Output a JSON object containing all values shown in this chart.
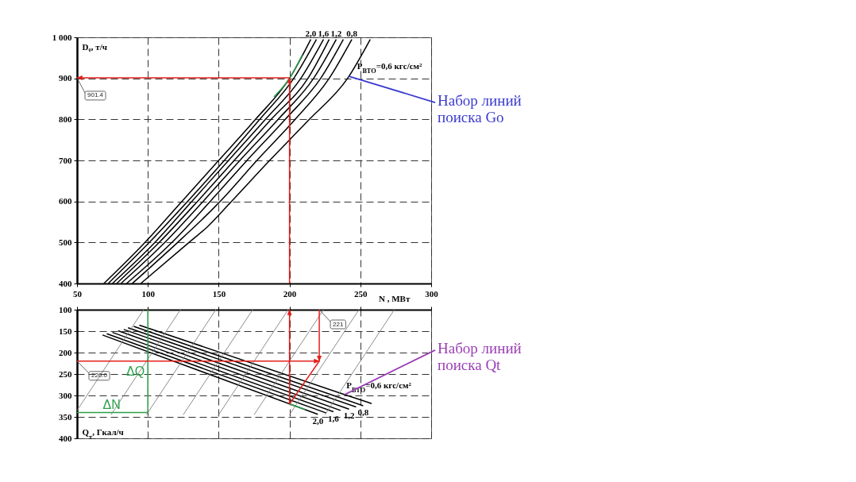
{
  "chart_data": [
    {
      "type": "line",
      "xlabel": "N , МВт",
      "ylabel": "D₀, т/ч",
      "xlim": [
        50,
        300
      ],
      "xticks": [
        50,
        100,
        150,
        200,
        250,
        300
      ],
      "ylim": [
        400,
        1000
      ],
      "yticks": [
        400,
        500,
        600,
        700,
        800,
        900,
        {
          "value": 1000,
          "label": "1 000"
        }
      ],
      "grid": true,
      "series": [
        {
          "name": "2,0",
          "color": "#000000",
          "x": [
            69,
            98,
            124,
            150,
            176,
            200,
            215
          ],
          "values": [
            400,
            500,
            600,
            700,
            800,
            900,
            995
          ]
        },
        {
          "color": "#000000",
          "x": [
            72,
            101,
            128,
            154,
            179,
            203,
            219
          ],
          "values": [
            400,
            500,
            600,
            700,
            800,
            900,
            995
          ]
        },
        {
          "name": "1,6",
          "color": "#000000",
          "x": [
            75,
            105,
            131,
            157,
            183,
            208,
            224
          ],
          "values": [
            400,
            500,
            600,
            700,
            800,
            900,
            995
          ]
        },
        {
          "color": "#000000",
          "x": [
            78,
            108,
            135,
            161,
            187,
            213,
            228
          ],
          "values": [
            400,
            500,
            600,
            700,
            800,
            900,
            995
          ]
        },
        {
          "name": "1,2",
          "color": "#000000",
          "x": [
            81,
            112,
            139,
            165,
            192,
            217,
            233
          ],
          "values": [
            400,
            500,
            600,
            700,
            800,
            900,
            995
          ]
        },
        {
          "color": "#000000",
          "x": [
            85,
            117,
            144,
            170,
            197,
            222,
            238
          ],
          "values": [
            400,
            500,
            600,
            700,
            800,
            900,
            995
          ]
        },
        {
          "name": "0,8",
          "color": "#000000",
          "x": [
            89,
            121,
            135,
            151,
            177,
            204,
            228,
            244
          ],
          "values": [
            400,
            500,
            545,
            600,
            700,
            800,
            900,
            995
          ]
        },
        {
          "name": "P$_{ВТО}$=0,6 кгс/см²",
          "color": "#000000",
          "x": [
            95,
            129,
            142,
            159,
            186,
            214,
            241,
            257
          ],
          "values": [
            400,
            500,
            538,
            600,
            700,
            800,
            900,
            995
          ]
        },
        {
          "color": "#2ca04a",
          "x": [
            189,
            200,
            209
          ],
          "values": [
            855,
            900,
            957
          ]
        },
        {
          "color": "#e3201b",
          "x": [
            200,
            200
          ],
          "values": [
            400,
            901.4
          ]
        },
        {
          "color": "#e3201b",
          "x": [
            200,
            50
          ],
          "values": [
            901.4,
            901.4
          ]
        }
      ],
      "annotations": [
        {
          "text": "901.4",
          "x": 50,
          "y": 901.4
        },
        {
          "text": "Набор линий\nпоиска Go",
          "x": 242,
          "y": 905
        }
      ]
    },
    {
      "type": "line",
      "ylabel": "Q$_{т}$, Гкал/ч",
      "xlim": [
        50,
        300
      ],
      "xticks": [
        50,
        100,
        150,
        200,
        250,
        300
      ],
      "tick_labels": "y",
      "ylim": [
        400,
        100
      ],
      "yticks": [
        100,
        150,
        200,
        250,
        300,
        350,
        400
      ],
      "grid": true,
      "series": [
        {
          "name": "2,0",
          "color": "#000000",
          "x": [
            68,
            220
          ],
          "values": [
            159,
            344
          ]
        },
        {
          "color": "#000000",
          "x": [
            71,
            226
          ],
          "values": [
            156,
            341
          ]
        },
        {
          "name": "1,6",
          "color": "#000000",
          "x": [
            75,
            231
          ],
          "values": [
            153,
            338
          ]
        },
        {
          "color": "#000000",
          "x": [
            79,
            236
          ],
          "values": [
            149,
            335
          ]
        },
        {
          "name": "1,2",
          "color": "#000000",
          "x": [
            83,
            242
          ],
          "values": [
            146,
            332
          ]
        },
        {
          "color": "#000000",
          "x": [
            86,
            247
          ],
          "values": [
            142,
            327
          ]
        },
        {
          "name": "0,8",
          "color": "#000000",
          "x": [
            90,
            252
          ],
          "values": [
            139,
            324
          ]
        },
        {
          "name": "P$_{ВТО}$=0,6 кгс/см²",
          "color": "#000000",
          "x": [
            94,
            239,
            258
          ],
          "values": [
            136,
            298,
            319
          ]
        },
        {
          "color": "#808080",
          "x": [
            50,
            97
          ],
          "values": [
            335,
            100
          ]
        },
        {
          "color": "#808080",
          "x": [
            74,
            123
          ],
          "values": [
            345,
            100
          ]
        },
        {
          "color": "#808080",
          "x": [
            99,
            148
          ],
          "values": [
            345,
            100
          ]
        },
        {
          "color": "#808080",
          "x": [
            125,
            174
          ],
          "values": [
            345,
            100
          ]
        },
        {
          "color": "#808080",
          "x": [
            150,
            199
          ],
          "values": [
            345,
            100
          ]
        },
        {
          "color": "#808080",
          "x": [
            175,
            224
          ],
          "values": [
            345,
            100
          ]
        },
        {
          "color": "#808080",
          "x": [
            200,
            249
          ],
          "values": [
            345,
            100
          ]
        },
        {
          "color": "#808080",
          "x": [
            225,
            274
          ],
          "values": [
            345,
            100
          ]
        },
        {
          "color": "#2ca04a",
          "x": [
            200,
            211
          ],
          "values": [
            320,
            333
          ]
        },
        {
          "color": "#2ca04a",
          "x": [
            50,
            100,
            100
          ],
          "values": [
            340,
            340,
            100
          ]
        },
        {
          "color": "#e3201b",
          "x": [
            200,
            200
          ],
          "values": [
            320,
            100
          ]
        },
        {
          "color": "#e3201b",
          "x": [
            200,
            221
          ],
          "values": [
            320,
            220
          ]
        },
        {
          "color": "#e3201b",
          "x": [
            50,
            221
          ],
          "values": [
            220,
            220
          ]
        },
        {
          "color": "#e3201b",
          "x": [
            221,
            221
          ],
          "values": [
            100,
            220
          ]
        }
      ],
      "annotations": [
        {
          "text": "220.0",
          "x": 50,
          "y": 220
        },
        {
          "text": "221",
          "x": 221,
          "y": 100
        },
        {
          "text": "ΔQ",
          "x": 100,
          "y": 250
        },
        {
          "text": "ΔN",
          "x": 75,
          "y": 340
        },
        {
          "text": "Набор линий\nпоиска Qt",
          "x": 239,
          "y": 298
        }
      ]
    }
  ]
}
